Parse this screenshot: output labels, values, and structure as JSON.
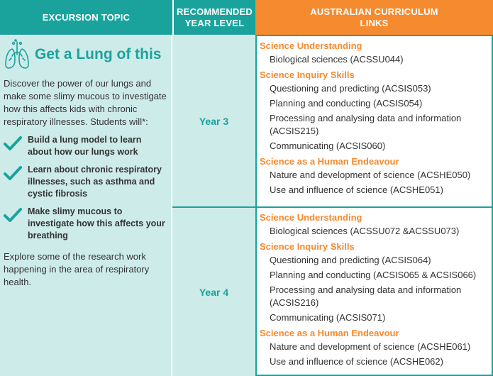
{
  "headers": {
    "topic": "EXCURSION TOPIC",
    "year_level": "RECOMMENDED YEAR LEVEL",
    "curriculum": "AUSTRALIAN CURRICULUM LINKS"
  },
  "topic": {
    "title": "Get a Lung of this",
    "icon": "lungs-icon",
    "intro": "Discover the power of our lungs and make some slimy mucous to investigate how this affects kids with chronic respiratory illnesses. Students will*:",
    "bullets": [
      "Build a lung model to learn about how our lungs work",
      "Learn about chronic respiratory illnesses, such as asthma and cystic fibrosis",
      "Make slimy mucous to investigate how this affects your breathing"
    ],
    "outro": "Explore some of the research work happening in the area of respiratory health."
  },
  "rows": [
    {
      "year": "Year 3",
      "sections": [
        {
          "title": "Science Understanding",
          "items": [
            "Biological sciences (ACSSU044)"
          ]
        },
        {
          "title": "Science Inquiry Skills",
          "items": [
            "Questioning and predicting (ACSIS053)",
            "Planning and conducting (ACSIS054)",
            "Processing and analysing data and information (ACSIS215)",
            "Communicating (ACSIS060)"
          ]
        },
        {
          "title": "Science as a Human Endeavour",
          "items": [
            "Nature and development of science (ACSHE050)",
            "Use and influence of science (ACSHE051)"
          ]
        }
      ]
    },
    {
      "year": "Year 4",
      "sections": [
        {
          "title": "Science Understanding",
          "items": [
            "Biological sciences (ACSSU072 &ACSSU073)"
          ]
        },
        {
          "title": "Science Inquiry Skills",
          "items": [
            "Questioning and predicting (ACSIS064)",
            "Planning and conducting (ACSIS065 & ACSIS066)",
            "Processing and analysing data and information (ACSIS216)",
            "Communicating (ACSIS071)"
          ]
        },
        {
          "title": "Science as a Human Endeavour",
          "items": [
            "Nature and development of science (ACSHE061)",
            "Use and influence of science (ACSHE062)"
          ]
        }
      ]
    }
  ],
  "colors": {
    "teal": "#1aa39d",
    "orange": "#f58a2e",
    "light_teal": "#cdebe9"
  }
}
